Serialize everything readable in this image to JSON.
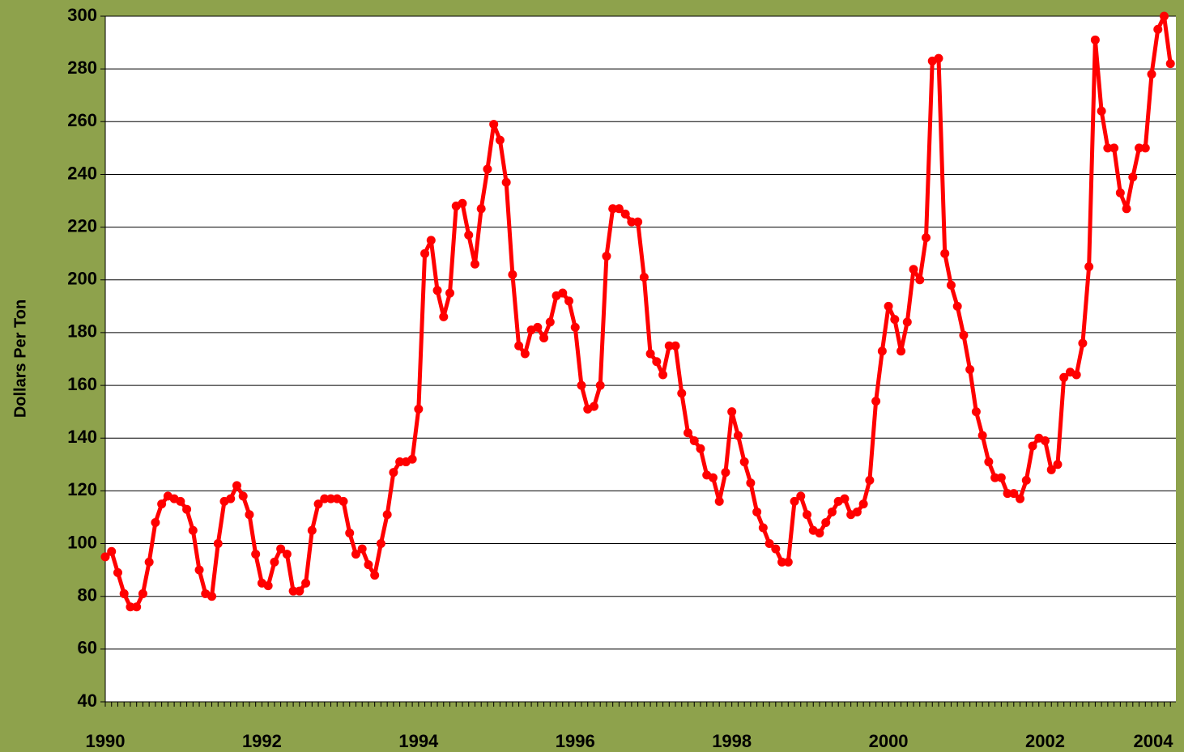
{
  "chart_data": {
    "type": "line",
    "y_label": "Dollars Per Ton",
    "x": [
      1990,
      1990.08,
      1990.16,
      1990.24,
      1990.32,
      1990.4,
      1990.48,
      1990.56,
      1990.64,
      1990.72,
      1990.8,
      1990.88,
      1990.96,
      1991.04,
      1991.12,
      1991.2,
      1991.28,
      1991.36,
      1991.44,
      1991.52,
      1991.6,
      1991.68,
      1991.76,
      1991.84,
      1991.92,
      1992,
      1992.08,
      1992.16,
      1992.24,
      1992.32,
      1992.4,
      1992.48,
      1992.56,
      1992.64,
      1992.72,
      1992.8,
      1992.88,
      1992.96,
      1993.04,
      1993.12,
      1993.2,
      1993.28,
      1993.36,
      1993.44,
      1993.52,
      1993.6,
      1993.68,
      1993.76,
      1993.84,
      1993.92,
      1994,
      1994.08,
      1994.16,
      1994.24,
      1994.32,
      1994.4,
      1994.48,
      1994.56,
      1994.64,
      1994.72,
      1994.8,
      1994.88,
      1994.96,
      1995.04,
      1995.12,
      1995.2,
      1995.28,
      1995.36,
      1995.44,
      1995.52,
      1995.6,
      1995.68,
      1995.76,
      1995.84,
      1995.92,
      1996,
      1996.08,
      1996.16,
      1996.24,
      1996.32,
      1996.4,
      1996.48,
      1996.56,
      1996.64,
      1996.72,
      1996.8,
      1996.88,
      1996.96,
      1997.04,
      1997.12,
      1997.2,
      1997.28,
      1997.36,
      1997.44,
      1997.52,
      1997.6,
      1997.68,
      1997.76,
      1997.84,
      1997.92,
      1998,
      1998.08,
      1998.16,
      1998.24,
      1998.32,
      1998.4,
      1998.48,
      1998.56,
      1998.64,
      1998.72,
      1998.8,
      1998.88,
      1998.96,
      1999.04,
      1999.12,
      1999.2,
      1999.28,
      1999.36,
      1999.44,
      1999.52,
      1999.6,
      1999.68,
      1999.76,
      1999.84,
      1999.92,
      2000,
      2000.08,
      2000.16,
      2000.24,
      2000.32,
      2000.4,
      2000.48,
      2000.56,
      2000.64,
      2000.72,
      2000.8,
      2000.88,
      2000.96,
      2001.04,
      2001.12,
      2001.2,
      2001.28,
      2001.36,
      2001.44,
      2001.52,
      2001.6,
      2001.68,
      2001.76,
      2001.84,
      2001.92,
      2002,
      2002.08,
      2002.16,
      2002.24,
      2002.32,
      2002.4,
      2002.48,
      2002.56,
      2002.64,
      2002.72,
      2002.8,
      2002.88,
      2002.96,
      2003.04,
      2003.12,
      2003.2,
      2003.28,
      2003.36,
      2003.44,
      2003.52,
      2003.6
    ],
    "series": [
      {
        "color": "#ff0000",
        "values": [
          95,
          97,
          89,
          81,
          76,
          76,
          81,
          93,
          108,
          115,
          118,
          117,
          116,
          113,
          105,
          90,
          81,
          80,
          100,
          116,
          117,
          122,
          118,
          111,
          96,
          85,
          84,
          93,
          98,
          96,
          82,
          82,
          85,
          105,
          115,
          117,
          117,
          117,
          116,
          104,
          96,
          98,
          92,
          88,
          100,
          111,
          127,
          131,
          131,
          132,
          151,
          210,
          215,
          196,
          186,
          195,
          228,
          229,
          217,
          206,
          227,
          242,
          259,
          253,
          237,
          202,
          175,
          172,
          181,
          182,
          178,
          184,
          194,
          195,
          192,
          182,
          160,
          151,
          152,
          160,
          209,
          227,
          227,
          225,
          222,
          222,
          201,
          172,
          169,
          164,
          175,
          175,
          157,
          142,
          139,
          136,
          126,
          125,
          116,
          127,
          150,
          141,
          131,
          123,
          112,
          106,
          100,
          98,
          93,
          93,
          116,
          118,
          111,
          105,
          104,
          108,
          112,
          116,
          117,
          111,
          112,
          115,
          124,
          154,
          173,
          190,
          185,
          173,
          184,
          204,
          200,
          216,
          283,
          284,
          210,
          198,
          190,
          179,
          166,
          150,
          141,
          131,
          125,
          125,
          119,
          119,
          117,
          124,
          137,
          140,
          139,
          128,
          130,
          163,
          165,
          164,
          176,
          205,
          291,
          264,
          250,
          250,
          233,
          227,
          239,
          250,
          250,
          278,
          295,
          300,
          282
        ]
      }
    ],
    "xlim": [
      1990,
      2003.67
    ],
    "xticks": [
      1990,
      1992,
      1994,
      1996,
      1998,
      2000,
      2002,
      2004
    ],
    "ylim": [
      40,
      300
    ],
    "yticks": [
      40,
      60,
      80,
      100,
      120,
      140,
      160,
      180,
      200,
      220,
      240,
      260,
      280,
      300
    ],
    "grid": true
  }
}
